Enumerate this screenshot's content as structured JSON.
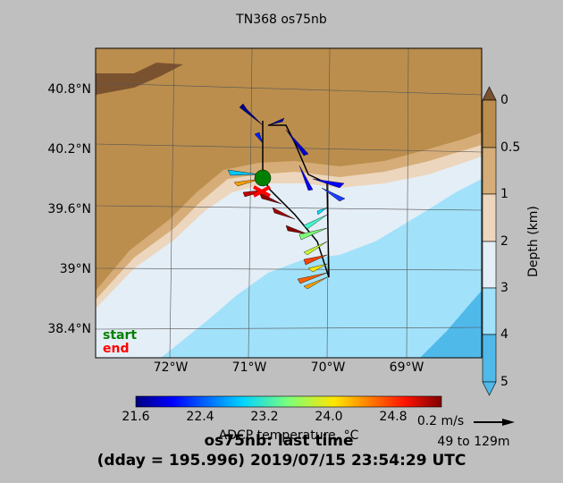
{
  "title": "TN368 os75nb",
  "lat_labels": [
    "40.8°N",
    "40.2°N",
    "39.6°N",
    "39°N",
    "38.4°N"
  ],
  "lon_labels": [
    "72°W",
    "71°W",
    "70°W",
    "69°W"
  ],
  "legend": {
    "start": "start",
    "end": "end"
  },
  "depth_colorbar": {
    "label": "Depth (km)",
    "ticks": [
      "0",
      "0.5",
      "1",
      "2",
      "3",
      "4",
      "5"
    ]
  },
  "temperature_colorbar": {
    "label": "ADCP temperature, °C",
    "ticks": [
      "21.6",
      "22.4",
      "23.2",
      "24.0",
      "24.8"
    ]
  },
  "scale": {
    "speed": "0.2 m/s",
    "depth_range": "49 to 129m"
  },
  "footer": {
    "line1": "os75nb: last time",
    "line2": "(dday = 195.996) 2019/07/15 23:54:29 UTC"
  }
}
